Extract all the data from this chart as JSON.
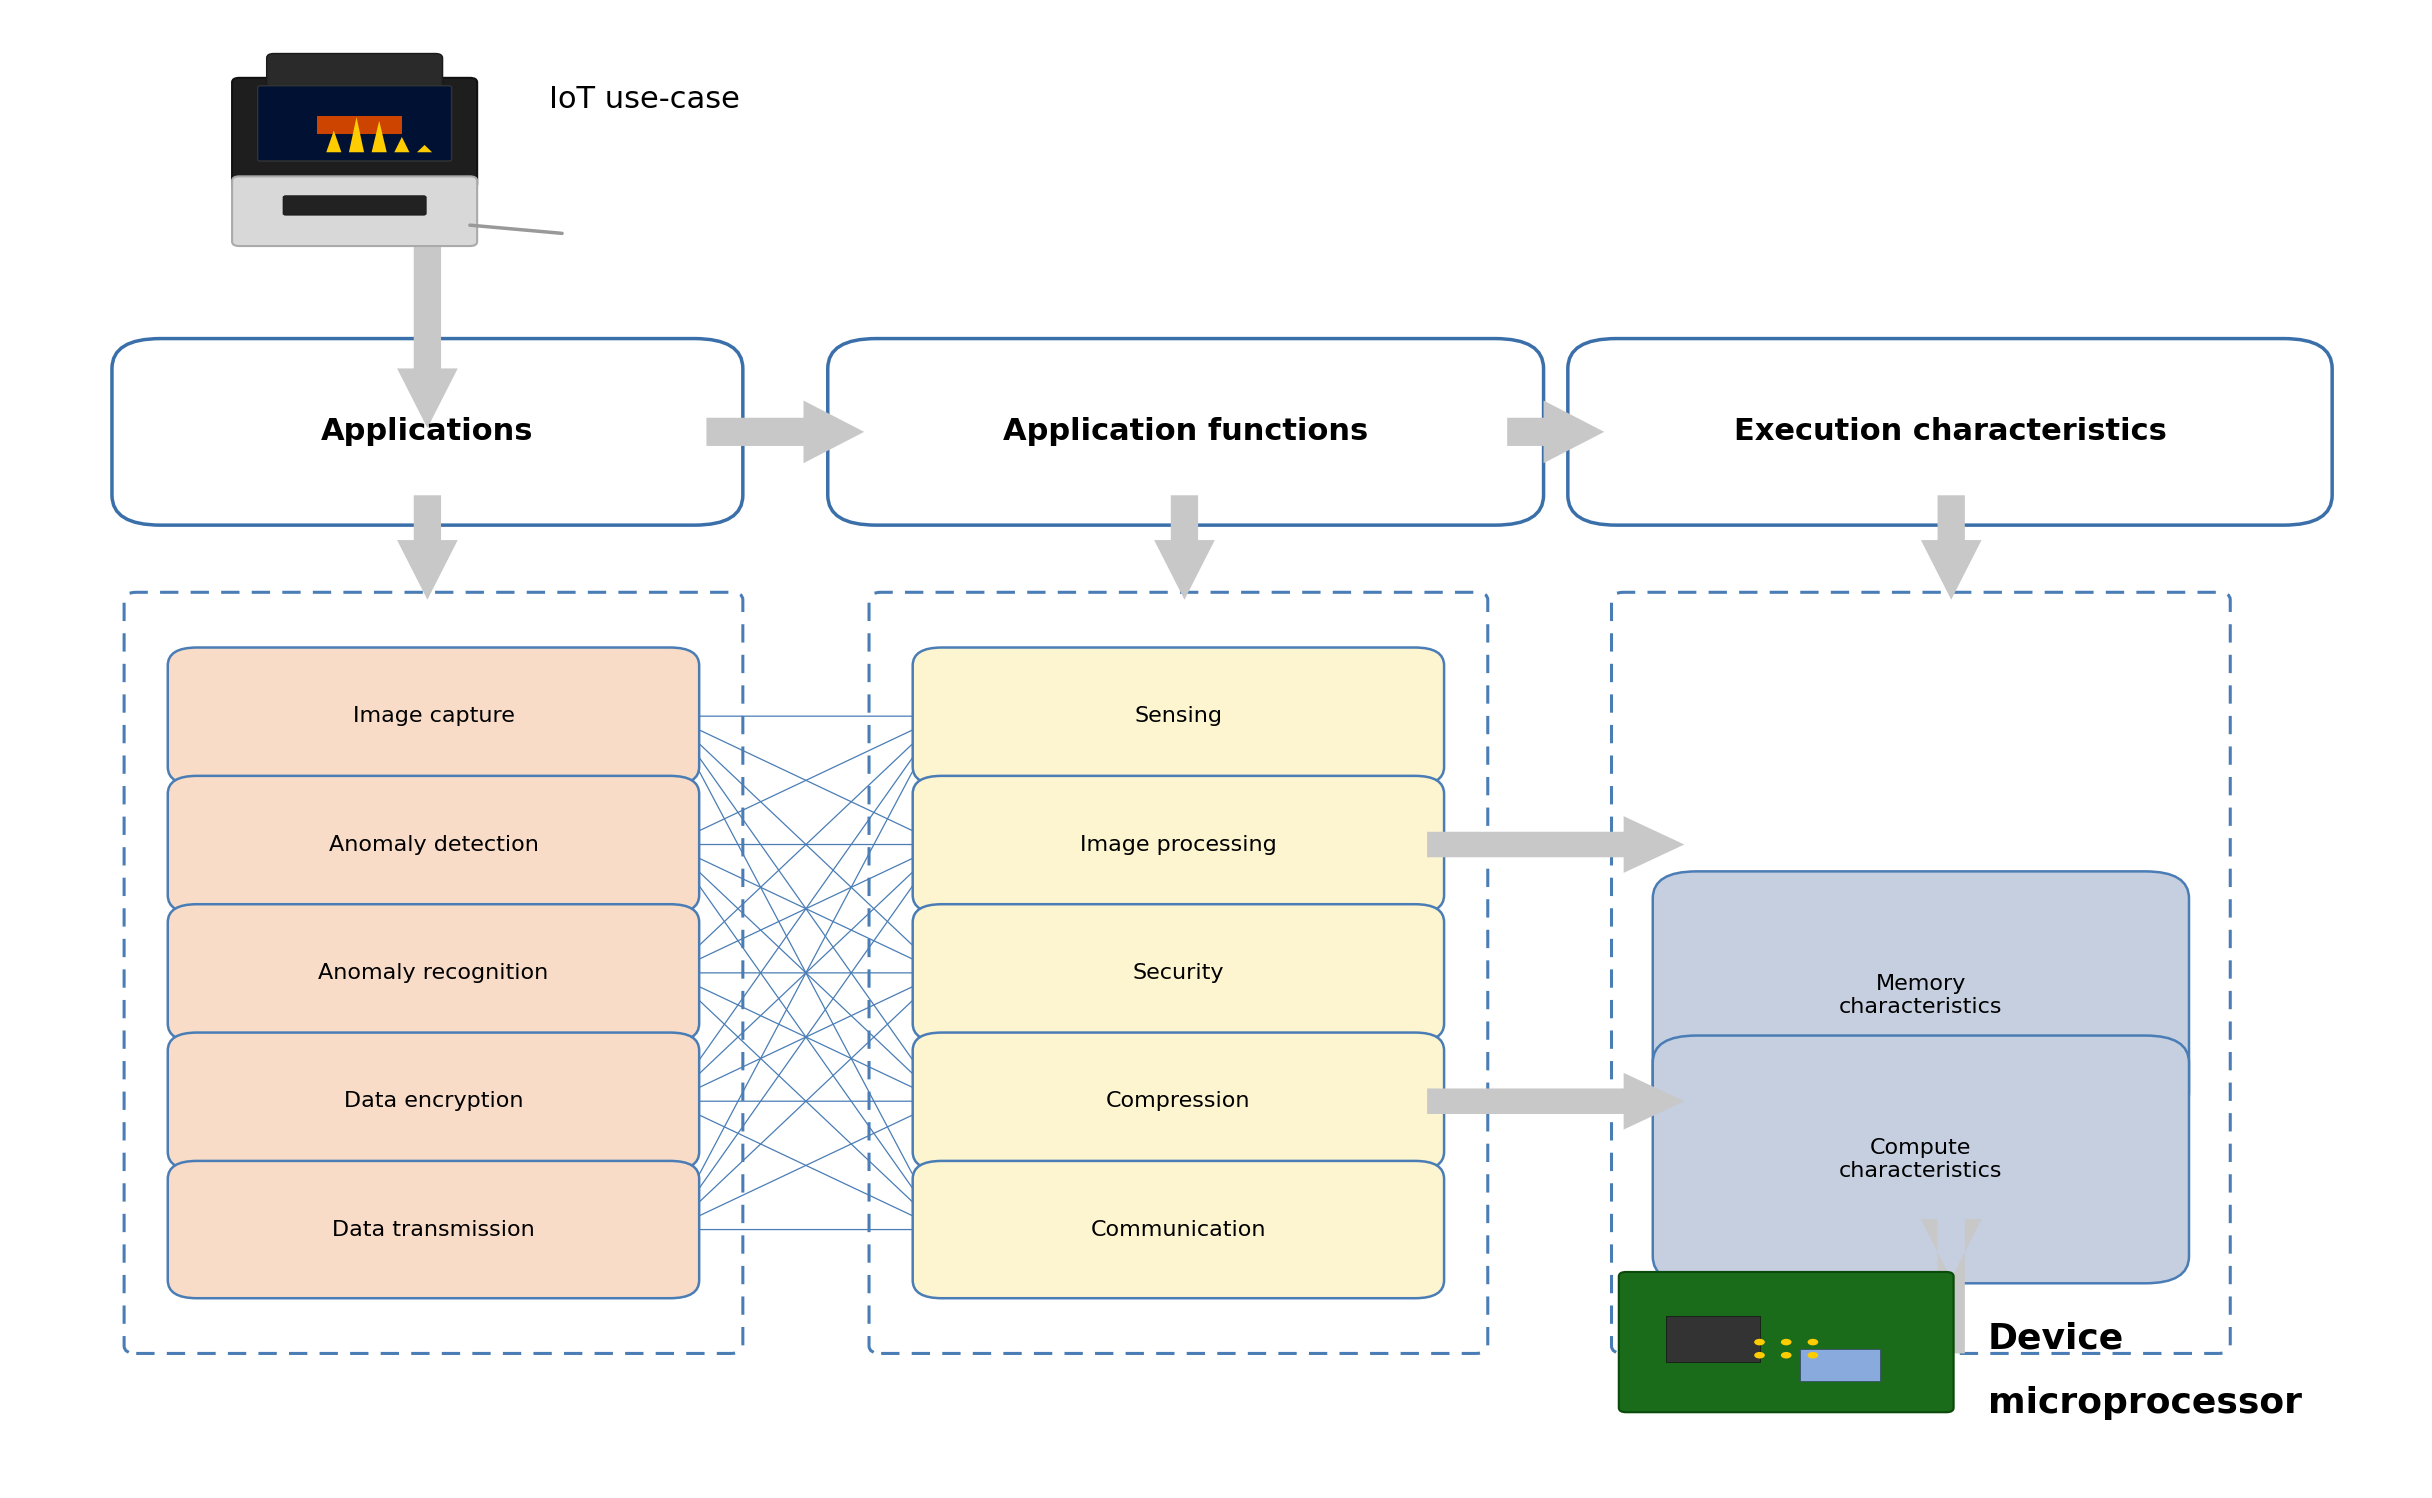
{
  "fig_width": 24.32,
  "fig_height": 14.98,
  "bg_color": "#ffffff",
  "app_items": [
    "Image capture",
    "Anomaly detection",
    "Anomaly recognition",
    "Data encryption",
    "Data transmission"
  ],
  "func_items": [
    "Sensing",
    "Image processing",
    "Security",
    "Compression",
    "Communication"
  ],
  "exec_items": [
    "Memory\ncharacteristics",
    "Compute\ncharacteristics"
  ],
  "app_box_color": "#f8dcc8",
  "app_box_edge": "#4a7db5",
  "func_box_color": "#fdf5d0",
  "func_box_edge": "#4a7db5",
  "exec_box_color": "#c5cfe0",
  "exec_box_edge": "#4a7db5",
  "title_box_color": "#ffffff",
  "title_box_edge": "#3a6faa",
  "dashed_border_color": "#4a7db5",
  "arrow_color": "#c0c0c0",
  "connector_color": "#4a7db5",
  "iot_label": "IoT use-case",
  "device_label_line1": "Device",
  "device_label_line2": "microprocessor"
}
